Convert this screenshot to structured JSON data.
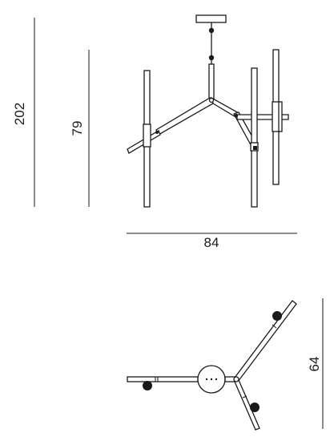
{
  "dimensions": {
    "total_height": "202",
    "body_height": "79",
    "width": "84",
    "depth": "64"
  },
  "colors": {
    "line": "#1a1a1a",
    "background": "#ffffff"
  }
}
